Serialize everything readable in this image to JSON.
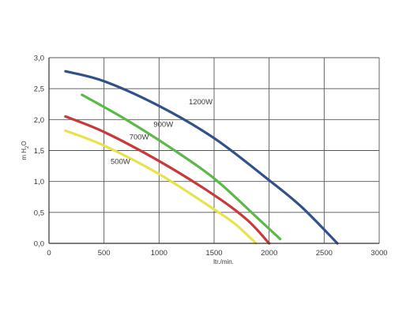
{
  "chart_data": {
    "type": "line",
    "xlabel": "ltr./min.",
    "ylabel": "m H2O",
    "ylabel_main": "m H",
    "ylabel_sub": "2",
    "ylabel_end": "O",
    "xlim": [
      0,
      3000
    ],
    "ylim": [
      0,
      3.0
    ],
    "x_ticks": [
      0,
      500,
      1000,
      1500,
      2000,
      2500,
      3000
    ],
    "x_tick_labels": [
      "0",
      "500",
      "1000",
      "1500",
      "2000",
      "2500",
      "3000"
    ],
    "y_ticks": [
      0,
      0.5,
      1.0,
      1.5,
      2.0,
      2.5,
      3.0
    ],
    "y_tick_labels": [
      "0,0",
      "0,5",
      "1,0",
      "1,5",
      "2,0",
      "2,5",
      "3,0"
    ],
    "grid": true,
    "series": [
      {
        "name": "1200W",
        "color": "#33508a",
        "x": [
          150,
          500,
          1000,
          1500,
          2000,
          2300,
          2620
        ],
        "y": [
          2.78,
          2.62,
          2.22,
          1.7,
          1.02,
          0.58,
          0.0
        ],
        "label_at": [
          1270,
          2.25
        ]
      },
      {
        "name": "900W",
        "color": "#5cb84a",
        "x": [
          300,
          700,
          1100,
          1500,
          1900,
          2100
        ],
        "y": [
          2.4,
          2.0,
          1.55,
          1.05,
          0.4,
          0.07
        ],
        "label_at": [
          950,
          1.88
        ]
      },
      {
        "name": "700W",
        "color": "#c8393c",
        "x": [
          150,
          500,
          1000,
          1500,
          1800,
          2000
        ],
        "y": [
          2.05,
          1.8,
          1.33,
          0.78,
          0.38,
          0.0
        ],
        "label_at": [
          730,
          1.68
        ]
      },
      {
        "name": "500W",
        "color": "#e8e24c",
        "x": [
          150,
          500,
          1000,
          1500,
          1700,
          1880
        ],
        "y": [
          1.82,
          1.58,
          1.12,
          0.55,
          0.3,
          0.0
        ],
        "label_at": [
          560,
          1.28
        ]
      }
    ]
  }
}
